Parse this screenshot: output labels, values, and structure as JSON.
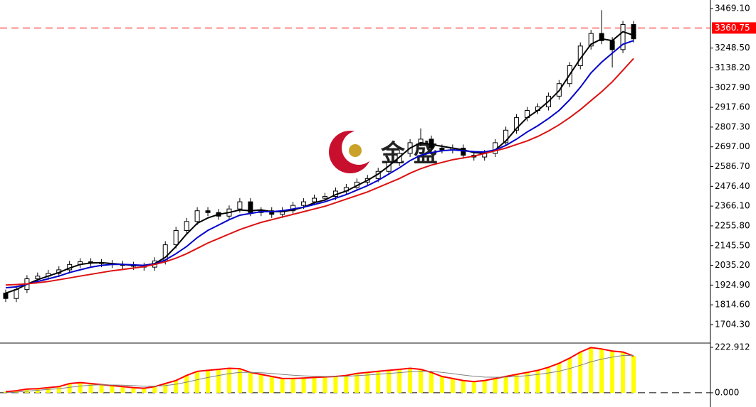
{
  "chart_data": [
    {
      "type": "candlestick",
      "watermark": "金 盛",
      "up_color": "#ffffff",
      "down_color": "#000000",
      "open": [
        1880,
        1850,
        1900,
        1960,
        1975,
        1990,
        2010,
        2040,
        2055,
        2050,
        2045,
        2040,
        2035,
        2030,
        2025,
        2060,
        2150,
        2230,
        2280,
        2340,
        2330,
        2310,
        2350,
        2390,
        2330,
        2340,
        2320,
        2340,
        2370,
        2390,
        2410,
        2420,
        2450,
        2470,
        2500,
        2520,
        2560,
        2610,
        2660,
        2720,
        2740,
        2690,
        2680,
        2690,
        2650,
        2640,
        2660,
        2720,
        2790,
        2860,
        2900,
        2920,
        2980,
        3050,
        3150,
        3260,
        3330,
        3290,
        3240,
        3380
      ],
      "high": [
        1900,
        1920,
        1980,
        1995,
        2010,
        2030,
        2060,
        2075,
        2075,
        2070,
        2065,
        2060,
        2055,
        2050,
        2080,
        2170,
        2250,
        2300,
        2360,
        2360,
        2350,
        2370,
        2410,
        2410,
        2360,
        2360,
        2360,
        2390,
        2410,
        2430,
        2440,
        2470,
        2490,
        2520,
        2540,
        2580,
        2630,
        2680,
        2740,
        2800,
        2760,
        2710,
        2710,
        2710,
        2670,
        2680,
        2740,
        2810,
        2880,
        2920,
        2940,
        3000,
        3070,
        3170,
        3280,
        3350,
        3460,
        3310,
        3400,
        3400
      ],
      "low": [
        1830,
        1830,
        1880,
        1940,
        1955,
        1970,
        1990,
        2020,
        2030,
        2025,
        2020,
        2015,
        2010,
        2005,
        2005,
        2040,
        2130,
        2210,
        2260,
        2310,
        2290,
        2290,
        2330,
        2310,
        2310,
        2300,
        2300,
        2320,
        2350,
        2370,
        2390,
        2400,
        2430,
        2450,
        2480,
        2500,
        2540,
        2590,
        2640,
        2700,
        2670,
        2660,
        2660,
        2630,
        2620,
        2620,
        2640,
        2700,
        2770,
        2840,
        2880,
        2900,
        2960,
        3030,
        3130,
        3240,
        3270,
        3140,
        3220,
        3280
      ],
      "close": [
        1850,
        1900,
        1960,
        1975,
        1990,
        2010,
        2040,
        2055,
        2050,
        2045,
        2040,
        2035,
        2030,
        2025,
        2060,
        2150,
        2230,
        2280,
        2340,
        2330,
        2310,
        2350,
        2390,
        2330,
        2340,
        2320,
        2340,
        2370,
        2390,
        2410,
        2420,
        2450,
        2470,
        2500,
        2520,
        2560,
        2610,
        2660,
        2720,
        2740,
        2690,
        2680,
        2690,
        2650,
        2640,
        2660,
        2720,
        2790,
        2860,
        2900,
        2920,
        2980,
        3050,
        3150,
        3260,
        3330,
        3290,
        3240,
        3380,
        3300
      ],
      "series": [
        {
          "color": "#000000",
          "values": [
            1880,
            1900,
            1930,
            1955,
            1975,
            1995,
            2020,
            2040,
            2048,
            2050,
            2045,
            2040,
            2035,
            2035,
            2045,
            2080,
            2140,
            2210,
            2270,
            2300,
            2320,
            2330,
            2345,
            2340,
            2345,
            2335,
            2335,
            2345,
            2360,
            2385,
            2400,
            2430,
            2450,
            2480,
            2510,
            2545,
            2590,
            2640,
            2690,
            2720,
            2710,
            2700,
            2690,
            2680,
            2665,
            2660,
            2680,
            2730,
            2800,
            2860,
            2900,
            2950,
            3010,
            3100,
            3190,
            3270,
            3300,
            3290,
            3340,
            3320
          ]
        },
        {
          "color": "#0000cc",
          "values": [
            1910,
            1915,
            1930,
            1945,
            1960,
            1975,
            1995,
            2010,
            2025,
            2035,
            2040,
            2040,
            2038,
            2035,
            2042,
            2065,
            2100,
            2140,
            2190,
            2230,
            2260,
            2290,
            2315,
            2325,
            2335,
            2335,
            2340,
            2350,
            2360,
            2375,
            2390,
            2410,
            2430,
            2455,
            2480,
            2510,
            2545,
            2580,
            2620,
            2650,
            2665,
            2675,
            2680,
            2675,
            2670,
            2668,
            2680,
            2705,
            2740,
            2780,
            2815,
            2855,
            2900,
            2960,
            3030,
            3110,
            3170,
            3220,
            3270,
            3290
          ]
        },
        {
          "color": "#dd1111",
          "values": [
            1925,
            1928,
            1932,
            1938,
            1945,
            1955,
            1965,
            1975,
            1985,
            1995,
            2005,
            2012,
            2020,
            2028,
            2040,
            2055,
            2075,
            2100,
            2130,
            2160,
            2185,
            2210,
            2235,
            2255,
            2275,
            2290,
            2305,
            2320,
            2335,
            2350,
            2365,
            2385,
            2405,
            2425,
            2445,
            2470,
            2495,
            2520,
            2550,
            2575,
            2595,
            2610,
            2625,
            2635,
            2645,
            2660,
            2675,
            2690,
            2710,
            2730,
            2755,
            2785,
            2820,
            2860,
            2905,
            2955,
            3005,
            3060,
            3125,
            3190
          ]
        }
      ],
      "last_price": 3360.75,
      "last_price_color": "#ff0000",
      "ylim": [
        1609,
        3517
      ],
      "yticks": [
        {
          "value": 3469.1,
          "label": "3469.10"
        },
        {
          "value": 3248.5,
          "label": "3248.50"
        },
        {
          "value": 3138.2,
          "label": "3138.20"
        },
        {
          "value": 3027.9,
          "label": "3027.90"
        },
        {
          "value": 2917.6,
          "label": "2917.60"
        },
        {
          "value": 2807.3,
          "label": "2807.30"
        },
        {
          "value": 2697,
          "label": "2697.00"
        },
        {
          "value": 2586.7,
          "label": "2586.70"
        },
        {
          "value": 2476.4,
          "label": "2476.40"
        },
        {
          "value": 2366.1,
          "label": "2366.10"
        },
        {
          "value": 2255.8,
          "label": "2255.80"
        },
        {
          "value": 2145.5,
          "label": "2145.50"
        },
        {
          "value": 2035.2,
          "label": "2035.20"
        },
        {
          "value": 1924.9,
          "label": "1924.90"
        },
        {
          "value": 1814.6,
          "label": "1814.60"
        },
        {
          "value": 1704.3,
          "label": "1704.30"
        }
      ]
    },
    {
      "type": "oscillator",
      "color": "#ffff00",
      "line_color": "#ff0000",
      "values": [
        5,
        10,
        18,
        20,
        25,
        30,
        45,
        50,
        45,
        40,
        35,
        30,
        25,
        22,
        30,
        45,
        60,
        85,
        105,
        110,
        115,
        120,
        118,
        100,
        90,
        80,
        70,
        70,
        72,
        75,
        78,
        80,
        85,
        95,
        100,
        105,
        110,
        115,
        120,
        115,
        100,
        80,
        70,
        60,
        55,
        60,
        70,
        80,
        90,
        100,
        110,
        125,
        145,
        170,
        200,
        222,
        215,
        205,
        200,
        180
      ],
      "series": [
        {
          "color": "#808080",
          "values": [
            0,
            3,
            8,
            12,
            16,
            20,
            27,
            33,
            37,
            39,
            38,
            37,
            35,
            32,
            32,
            35,
            42,
            52,
            64,
            75,
            85,
            94,
            100,
            100,
            98,
            95,
            90,
            86,
            83,
            81,
            80,
            80,
            81,
            84,
            87,
            91,
            95,
            99,
            103,
            106,
            105,
            100,
            94,
            87,
            81,
            77,
            76,
            77,
            80,
            84,
            90,
            97,
            106,
            119,
            135,
            152,
            165,
            175,
            183,
            183
          ]
        }
      ],
      "ylim": [
        -70,
        237
      ],
      "yticks": [
        222.912,
        {
          "value": 0,
          "label": "0.000"
        }
      ]
    }
  ]
}
